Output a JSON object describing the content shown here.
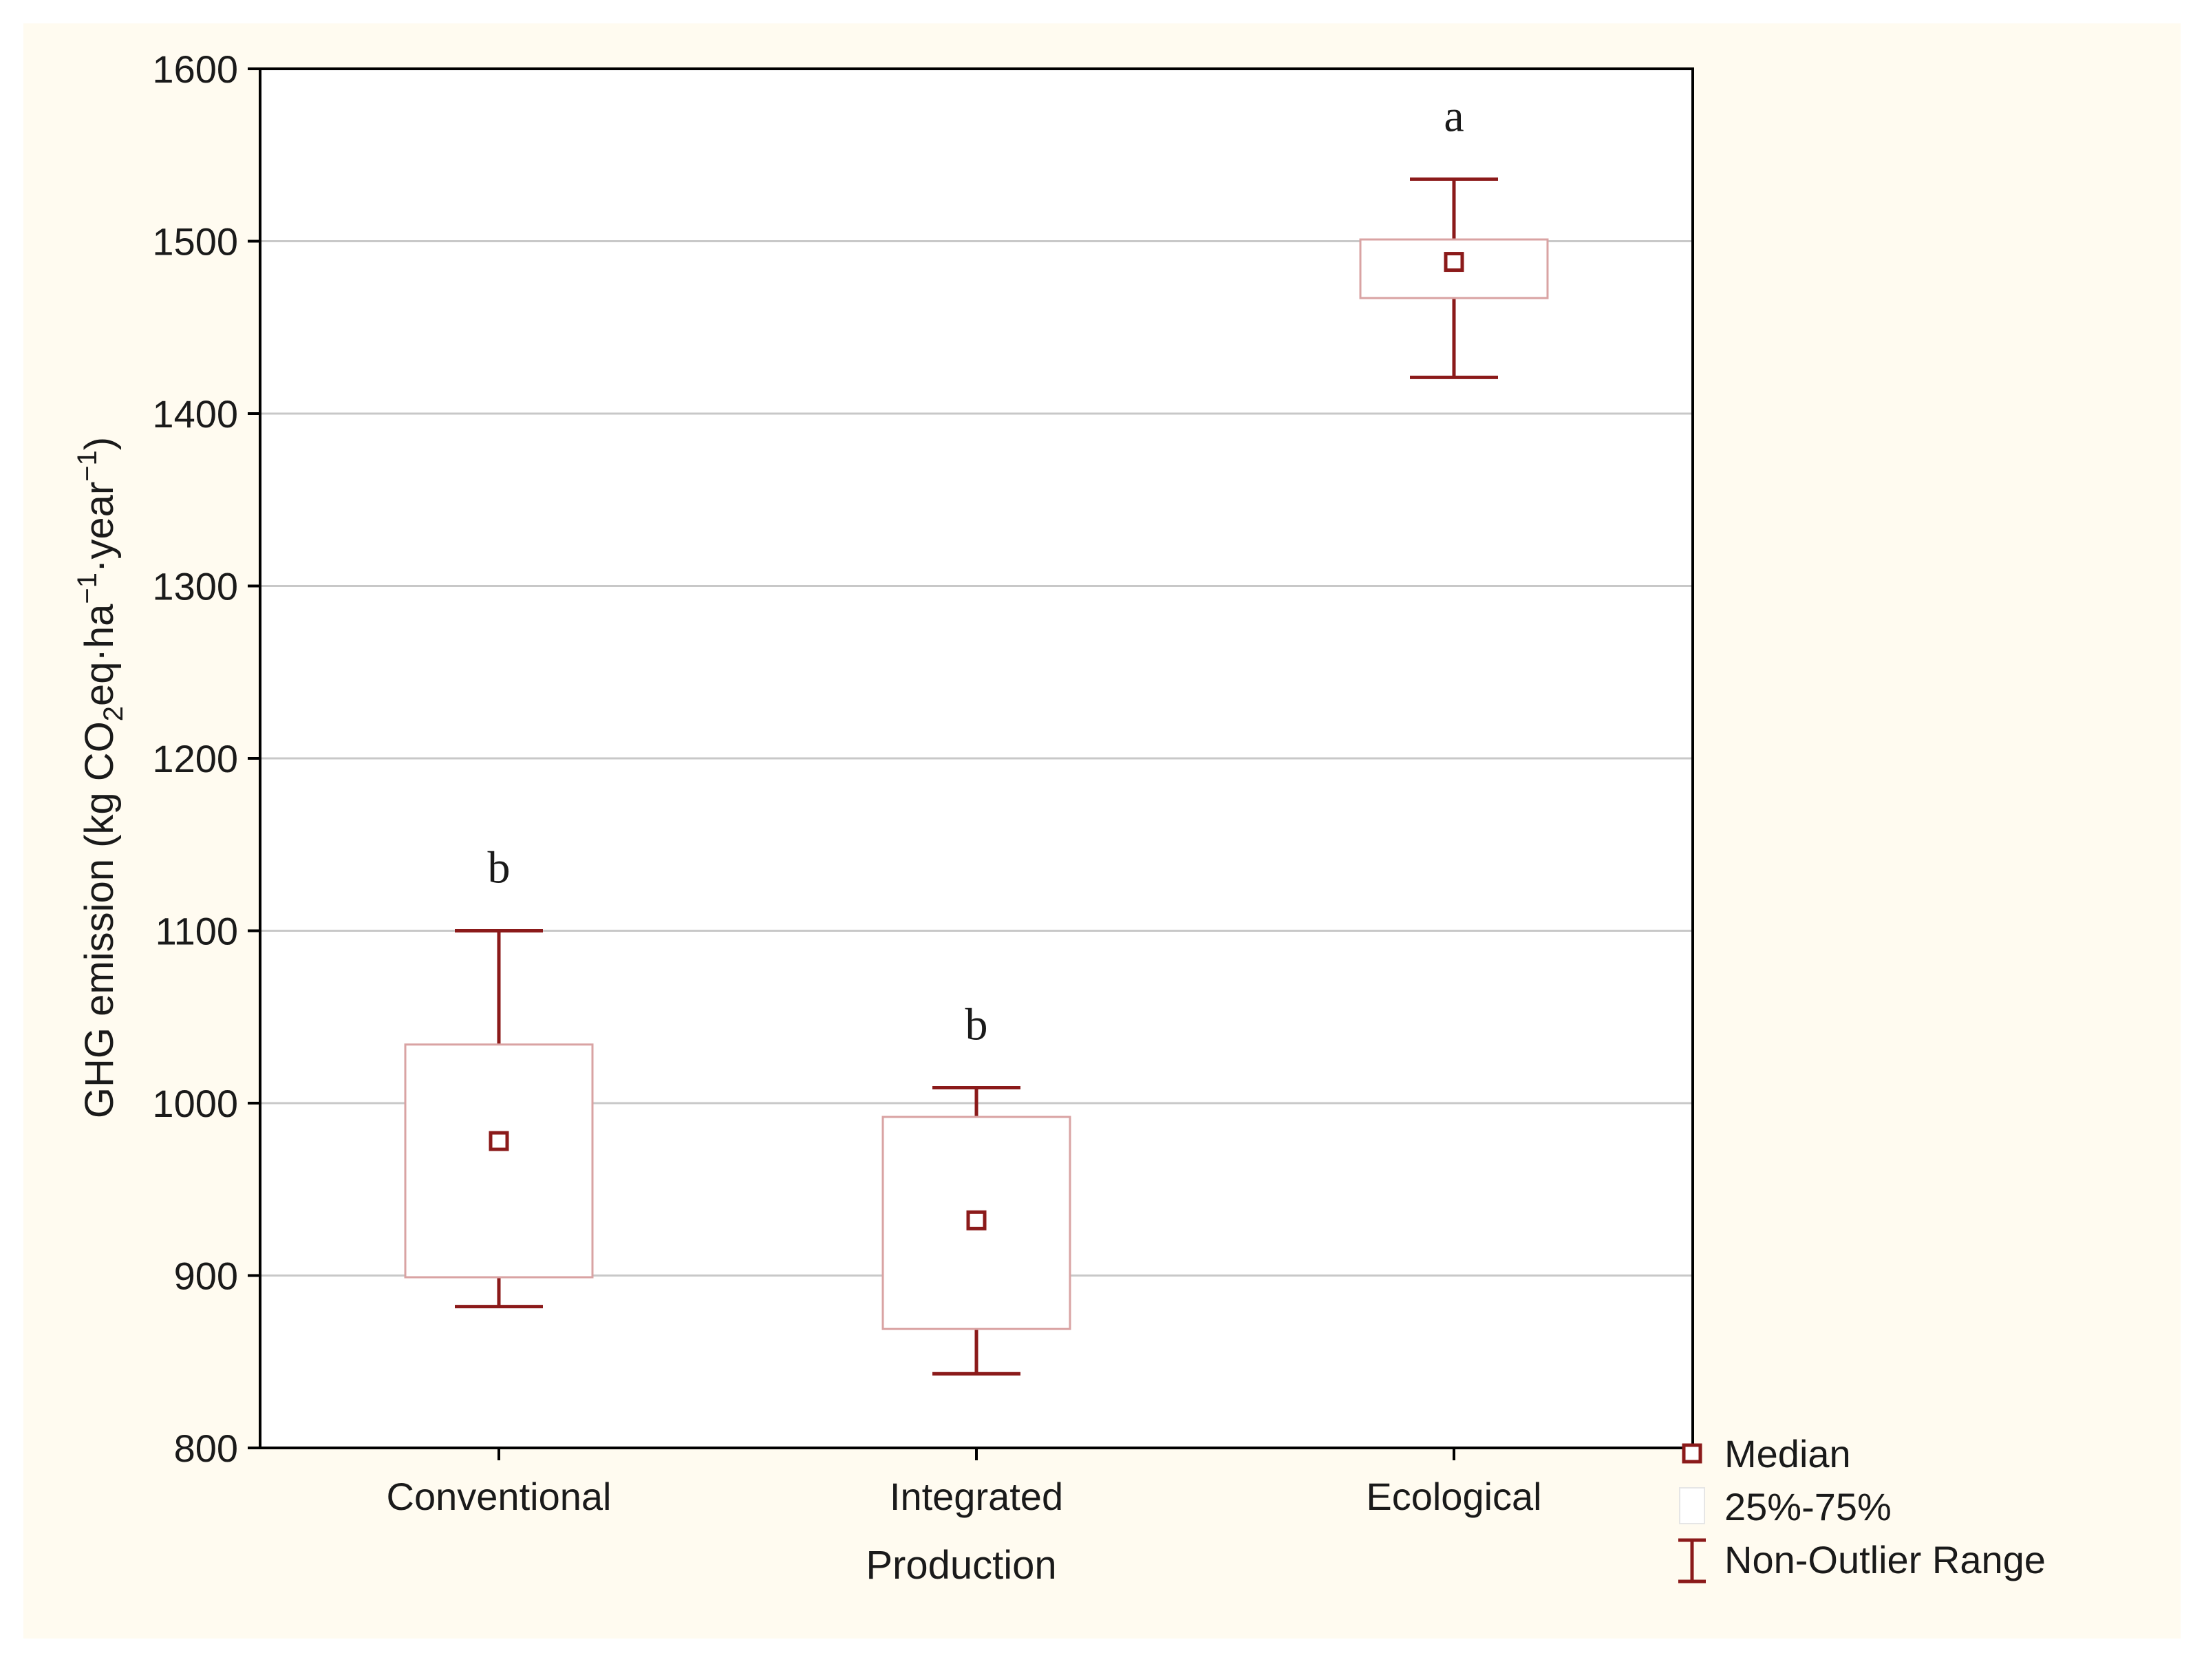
{
  "chart_data": {
    "type": "box",
    "xlabel": "Production",
    "ylabel": {
      "prefix": "GHG emission (kg CO",
      "sub": "2",
      "mid1": "eq·ha",
      "sup1": "−1",
      "mid2": "·year",
      "sup2": "−1",
      "suffix": ")"
    },
    "ylim": [
      800,
      1600
    ],
    "yticks": [
      800,
      900,
      1000,
      1100,
      1200,
      1300,
      1400,
      1500,
      1600
    ],
    "grid": true,
    "categories": [
      "Conventional",
      "Integrated",
      "Ecological"
    ],
    "boxes": [
      {
        "category": "Conventional",
        "median": 978,
        "q1": 899,
        "q3": 1034,
        "min": 882,
        "max": 1100,
        "letter": "b"
      },
      {
        "category": "Integrated",
        "median": 932,
        "q1": 869,
        "q3": 992,
        "min": 843,
        "max": 1009,
        "letter": "b"
      },
      {
        "category": "Ecological",
        "median": 1488,
        "q1": 1467,
        "q3": 1501,
        "min": 1421,
        "max": 1536,
        "letter": "a"
      }
    ],
    "legend": {
      "position": "bottom-right",
      "entries": [
        {
          "label": "Median",
          "symbol": "square"
        },
        {
          "label": "25%-75%",
          "symbol": "box"
        },
        {
          "label": "Non-Outlier Range",
          "symbol": "whisker"
        }
      ]
    },
    "colors": {
      "mark": "#8b1a1a",
      "box_edge": "#d9a3a3",
      "grid": "#c8c8c8",
      "background": "#fffbf0"
    }
  }
}
